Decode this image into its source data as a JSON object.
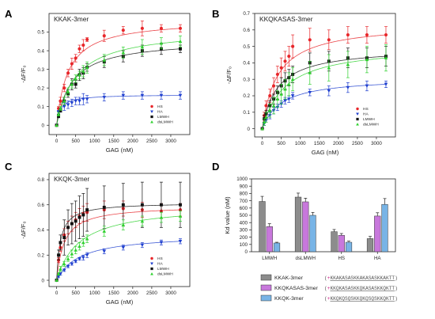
{
  "figure": {
    "panels": [
      {
        "letter": "A",
        "title": "KKAK-3mer",
        "xlabel": "GAG (nM)",
        "ylabel": "-ΔF/F₀"
      },
      {
        "letter": "B",
        "title": "KKQKASAS-3mer",
        "xlabel": "GAG (nM)",
        "ylabel": "-ΔF/F₀"
      },
      {
        "letter": "C",
        "title": "KKQK-3mer",
        "xlabel": "GAG (nM)",
        "ylabel": "-ΔF/F₀"
      },
      {
        "letter": "D",
        "title": "",
        "xlabel": "",
        "ylabel": "Kd value (nM)"
      }
    ],
    "sequences": [
      {
        "open": "(",
        "mark": "+",
        "seq": "KKAKASASKKAKASASKKAKTT",
        "close": ")"
      },
      {
        "open": "(",
        "mark": "+",
        "seq": "KKQKASASKKQKASASKKQKTT",
        "close": ")"
      },
      {
        "open": "(",
        "mark": "+",
        "seq": "KKQKQSQSKKQKQSQSKKQKTT",
        "close": ")"
      }
    ]
  },
  "colors": {
    "HS": "#e8262a",
    "HA": "#1f3fcf",
    "LMWH": "#111111",
    "dsLMWH": "#2ed12e",
    "bar_KKAK": "#8c8c8c",
    "bar_KKQKASAS": "#c878dc",
    "bar_KKQK": "#78b4e6",
    "seq_mark": "#d0208a",
    "seq_text": "#555555"
  },
  "chart_data": [
    {
      "type": "scatter",
      "panel": "A",
      "title": "KKAK-3mer",
      "xlabel": "GAG (nM)",
      "ylabel": "-ΔF/F₀",
      "xlim": [
        -200,
        3500
      ],
      "ylim": [
        -0.05,
        0.6
      ],
      "xticks": [
        0,
        500,
        1000,
        1500,
        2000,
        2500,
        3000
      ],
      "yticks": [
        0,
        0.1,
        0.2,
        0.3,
        0.4,
        0.5
      ],
      "legend_position": "bottom-right",
      "x": [
        0,
        50,
        100,
        200,
        300,
        400,
        500,
        600,
        700,
        800,
        1250,
        1750,
        2250,
        2750,
        3250
      ],
      "series": [
        {
          "name": "HS",
          "marker": "circle",
          "values": [
            0,
            0.09,
            0.13,
            0.2,
            0.28,
            0.33,
            0.36,
            0.41,
            0.43,
            0.46,
            0.48,
            0.51,
            0.52,
            0.52,
            0.52
          ],
          "errors": [
            0,
            0.01,
            0.02,
            0.02,
            0.02,
            0.03,
            0.02,
            0.02,
            0.03,
            0.01,
            0.03,
            0.02,
            0.04,
            0.02,
            0.02
          ]
        },
        {
          "name": "HA",
          "marker": "triangle-down",
          "values": [
            0,
            0.07,
            0.08,
            0.1,
            0.11,
            0.12,
            0.13,
            0.13,
            0.14,
            0.14,
            0.15,
            0.16,
            0.16,
            0.16,
            0.16
          ],
          "errors": [
            0,
            0.01,
            0.01,
            0.02,
            0.02,
            0.02,
            0.02,
            0.02,
            0.03,
            0.02,
            0.02,
            0.02,
            0.02,
            0.02,
            0.02
          ]
        },
        {
          "name": "LMWH",
          "marker": "square",
          "values": [
            0,
            0.05,
            0.08,
            0.13,
            0.17,
            0.22,
            0.22,
            0.27,
            0.28,
            0.31,
            0.34,
            0.37,
            0.4,
            0.41,
            0.41
          ],
          "errors": [
            0,
            0.01,
            0.01,
            0.02,
            0.02,
            0.03,
            0.02,
            0.03,
            0.03,
            0.02,
            0.03,
            0.03,
            0.03,
            0.03,
            0.02
          ]
        },
        {
          "name": "dsLMWH",
          "marker": "triangle-up",
          "values": [
            0,
            0.06,
            0.09,
            0.13,
            0.18,
            0.22,
            0.25,
            0.27,
            0.29,
            0.31,
            0.35,
            0.39,
            0.42,
            0.44,
            0.45
          ],
          "errors": [
            0,
            0.01,
            0.01,
            0.02,
            0.02,
            0.02,
            0.02,
            0.02,
            0.03,
            0.03,
            0.03,
            0.03,
            0.04,
            0.03,
            0.03
          ]
        }
      ]
    },
    {
      "type": "scatter",
      "panel": "B",
      "title": "KKQKASAS-3mer",
      "xlabel": "GAG (nM)",
      "ylabel": "-ΔF/F₀",
      "xlim": [
        -200,
        3500
      ],
      "ylim": [
        -0.05,
        0.7
      ],
      "xticks": [
        0,
        500,
        1000,
        1500,
        2000,
        2500,
        3000
      ],
      "yticks": [
        0,
        0.1,
        0.2,
        0.3,
        0.4,
        0.5,
        0.6,
        0.7
      ],
      "legend_position": "bottom-right",
      "x": [
        0,
        50,
        100,
        200,
        300,
        400,
        500,
        600,
        700,
        800,
        1250,
        1750,
        2250,
        2750,
        3250
      ],
      "series": [
        {
          "name": "HS",
          "marker": "circle",
          "values": [
            0,
            0.08,
            0.14,
            0.2,
            0.26,
            0.33,
            0.37,
            0.41,
            0.44,
            0.5,
            0.54,
            0.54,
            0.57,
            0.57,
            0.57
          ],
          "errors": [
            0,
            0.02,
            0.03,
            0.04,
            0.05,
            0.05,
            0.06,
            0.06,
            0.06,
            0.07,
            0.07,
            0.06,
            0.05,
            0.05,
            0.05
          ]
        },
        {
          "name": "HA",
          "marker": "triangle-down",
          "values": [
            0,
            0.03,
            0.05,
            0.08,
            0.11,
            0.13,
            0.15,
            0.17,
            0.18,
            0.2,
            0.22,
            0.23,
            0.25,
            0.26,
            0.27
          ],
          "errors": [
            0,
            0.01,
            0.01,
            0.02,
            0.02,
            0.02,
            0.02,
            0.02,
            0.02,
            0.02,
            0.02,
            0.03,
            0.03,
            0.03,
            0.02
          ]
        },
        {
          "name": "LMWH",
          "marker": "square",
          "values": [
            0,
            0.06,
            0.09,
            0.14,
            0.18,
            0.22,
            0.26,
            0.29,
            0.31,
            0.33,
            0.4,
            0.41,
            0.43,
            0.43,
            0.44
          ],
          "errors": [
            0,
            0.02,
            0.02,
            0.03,
            0.03,
            0.04,
            0.05,
            0.05,
            0.05,
            0.05,
            0.06,
            0.06,
            0.06,
            0.06,
            0.06
          ]
        },
        {
          "name": "dsLMWH",
          "marker": "triangle-up",
          "values": [
            0,
            0.04,
            0.07,
            0.11,
            0.14,
            0.18,
            0.21,
            0.24,
            0.27,
            0.3,
            0.34,
            0.37,
            0.39,
            0.42,
            0.43
          ],
          "errors": [
            0,
            0.02,
            0.03,
            0.04,
            0.05,
            0.05,
            0.06,
            0.06,
            0.07,
            0.07,
            0.07,
            0.08,
            0.08,
            0.08,
            0.08
          ]
        }
      ]
    },
    {
      "type": "scatter",
      "panel": "C",
      "title": "KKQK-3mer",
      "xlabel": "GAG (nM)",
      "ylabel": "-ΔF/F₀",
      "xlim": [
        -200,
        3500
      ],
      "ylim": [
        -0.05,
        0.85
      ],
      "xticks": [
        0,
        500,
        1000,
        1500,
        2000,
        2500,
        3000
      ],
      "yticks": [
        0,
        0.2,
        0.4,
        0.6,
        0.8
      ],
      "legend_position": "bottom-right",
      "x": [
        0,
        50,
        100,
        200,
        300,
        400,
        500,
        600,
        700,
        800,
        1250,
        1750,
        2250,
        2750,
        3250
      ],
      "series": [
        {
          "name": "HS",
          "marker": "circle",
          "values": [
            0,
            0.16,
            0.26,
            0.36,
            0.42,
            0.45,
            0.48,
            0.51,
            0.53,
            0.54,
            0.56,
            0.57,
            0.56,
            0.55,
            0.56
          ],
          "errors": [
            0,
            0.02,
            0.03,
            0.05,
            0.05,
            0.06,
            0.06,
            0.06,
            0.06,
            0.07,
            0.07,
            0.06,
            0.06,
            0.06,
            0.05
          ]
        },
        {
          "name": "HA",
          "marker": "triangle-down",
          "values": [
            0,
            0.03,
            0.05,
            0.08,
            0.11,
            0.13,
            0.15,
            0.17,
            0.18,
            0.2,
            0.23,
            0.26,
            0.28,
            0.3,
            0.31
          ],
          "errors": [
            0,
            0.01,
            0.01,
            0.01,
            0.01,
            0.01,
            0.01,
            0.01,
            0.02,
            0.02,
            0.02,
            0.02,
            0.02,
            0.02,
            0.02
          ]
        },
        {
          "name": "LMWH",
          "marker": "square",
          "values": [
            0,
            0.2,
            0.3,
            0.34,
            0.42,
            0.45,
            0.47,
            0.5,
            0.52,
            0.56,
            0.58,
            0.6,
            0.6,
            0.6,
            0.6
          ],
          "errors": [
            0,
            0.04,
            0.06,
            0.14,
            0.14,
            0.16,
            0.16,
            0.17,
            0.17,
            0.17,
            0.17,
            0.17,
            0.18,
            0.18,
            0.18
          ]
        },
        {
          "name": "dsLMWH",
          "marker": "triangle-up",
          "values": [
            0,
            0.05,
            0.09,
            0.13,
            0.17,
            0.21,
            0.24,
            0.27,
            0.3,
            0.33,
            0.39,
            0.44,
            0.47,
            0.5,
            0.51
          ],
          "errors": [
            0,
            0.01,
            0.02,
            0.02,
            0.02,
            0.03,
            0.03,
            0.03,
            0.03,
            0.03,
            0.04,
            0.04,
            0.04,
            0.04,
            0.04
          ]
        }
      ]
    },
    {
      "type": "bar",
      "panel": "D",
      "ylabel": "Kd value (nM)",
      "ylim": [
        0,
        1000
      ],
      "yticks": [
        0,
        100,
        200,
        300,
        400,
        500,
        600,
        700,
        800,
        900,
        1000
      ],
      "categories": [
        "LMWH",
        "dsLMWH",
        "HS",
        "HA"
      ],
      "legend_position": "bottom",
      "series": [
        {
          "name": "KKAK-3mer",
          "values": [
            690,
            750,
            275,
            180
          ],
          "errors": [
            70,
            55,
            30,
            30
          ]
        },
        {
          "name": "KKQKASAS-3mer",
          "values": [
            345,
            685,
            225,
            490
          ],
          "errors": [
            40,
            50,
            25,
            45
          ]
        },
        {
          "name": "KKQK-3mer",
          "values": [
            120,
            500,
            130,
            650
          ],
          "errors": [
            10,
            40,
            15,
            80
          ]
        }
      ]
    }
  ]
}
